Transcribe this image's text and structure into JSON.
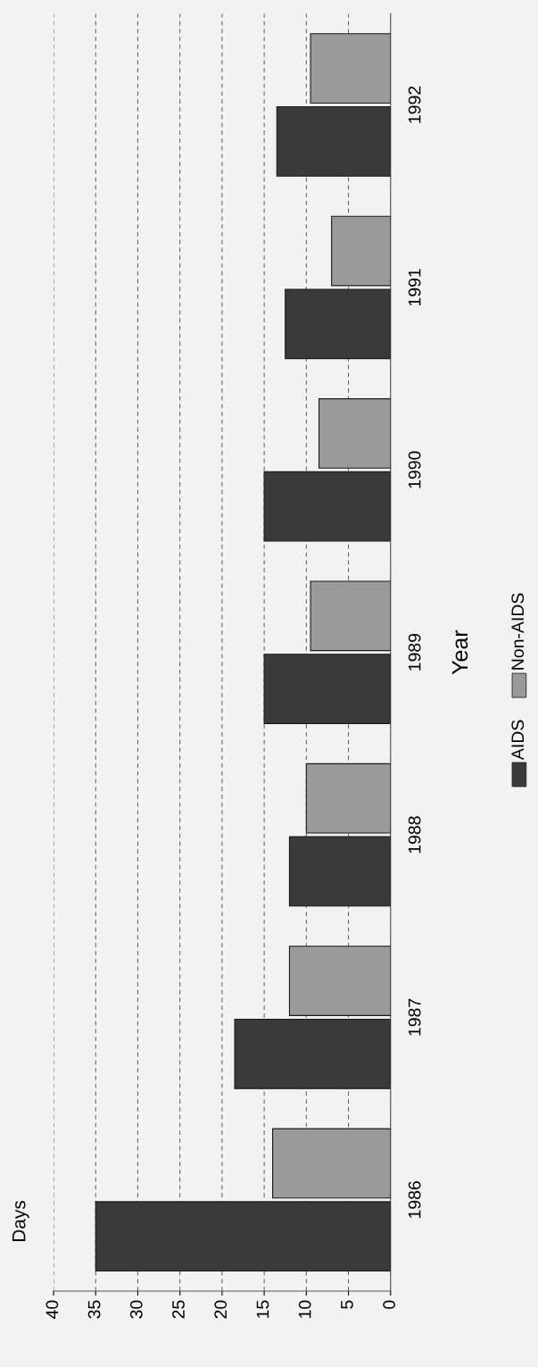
{
  "chart_data": {
    "type": "bar",
    "orientation": "horizontal",
    "annotations": [
      "Days"
    ],
    "ylabel": "Year",
    "categories": [
      "1992",
      "1991",
      "1990",
      "1989",
      "1988",
      "1987",
      "1986"
    ],
    "series": [
      {
        "name": "AIDS",
        "color": "#3a3a3a",
        "values": [
          13.5,
          12.5,
          15,
          15,
          12,
          18.5,
          35
        ]
      },
      {
        "name": "Non-AIDS",
        "color": "#9a9a9a",
        "values": [
          9.5,
          7,
          8.5,
          9.5,
          10,
          12,
          14
        ]
      }
    ],
    "xlim": [
      40,
      0
    ],
    "xticks": [
      0,
      5,
      10,
      15,
      20,
      25,
      30,
      35,
      40
    ],
    "grid": "x",
    "legend": "right"
  }
}
